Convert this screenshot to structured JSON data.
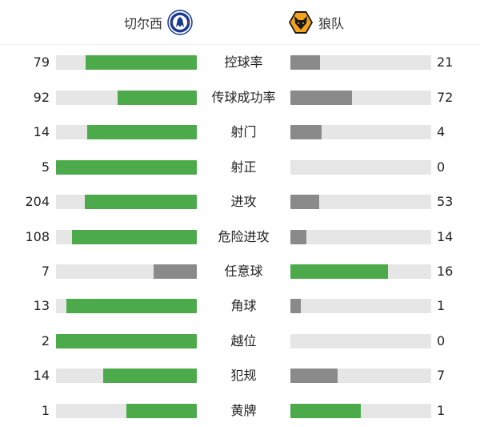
{
  "header": {
    "home_team": "切尔西",
    "away_team": "狼队",
    "home_logo": "chelsea-crest",
    "away_logo": "wolves-crest"
  },
  "colors": {
    "win": "#4caa4a",
    "lose": "#8a8a8a",
    "track": "#e6e6e6"
  },
  "stats": [
    {
      "label": "控球率",
      "home": 79,
      "away": 21
    },
    {
      "label": "传球成功率",
      "home": 92,
      "away": 72
    },
    {
      "label": "射门",
      "home": 14,
      "away": 4
    },
    {
      "label": "射正",
      "home": 5,
      "away": 0
    },
    {
      "label": "进攻",
      "home": 204,
      "away": 53
    },
    {
      "label": "危险进攻",
      "home": 108,
      "away": 14
    },
    {
      "label": "任意球",
      "home": 7,
      "away": 16
    },
    {
      "label": "角球",
      "home": 13,
      "away": 1
    },
    {
      "label": "越位",
      "home": 2,
      "away": 0
    },
    {
      "label": "犯规",
      "home": 14,
      "away": 7
    },
    {
      "label": "黄牌",
      "home": 1,
      "away": 1
    }
  ]
}
